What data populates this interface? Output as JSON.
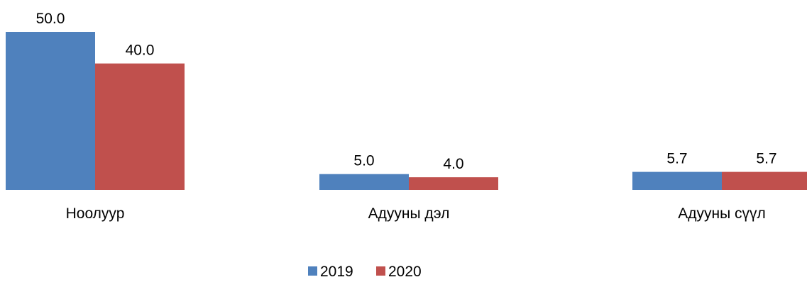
{
  "chart_data": {
    "type": "bar",
    "categories": [
      "Ноолуур",
      "Адууны дэл",
      "Адууны сүүл"
    ],
    "series": [
      {
        "name": "2019",
        "values": [
          50.0,
          5.0,
          5.7
        ],
        "value_labels": [
          "50.0",
          "5.0",
          "5.7"
        ],
        "color": "#4F81BD"
      },
      {
        "name": "2020",
        "values": [
          40.0,
          4.0,
          5.7
        ],
        "value_labels": [
          "40.0",
          "4.0",
          "5.7"
        ],
        "color": "#C0504D"
      }
    ],
    "ylim": [
      0,
      50
    ],
    "grid": false,
    "legend_position": "bottom-center"
  }
}
